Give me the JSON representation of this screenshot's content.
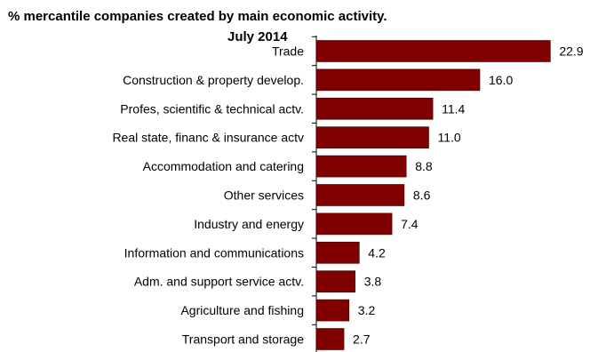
{
  "chart_data": {
    "type": "bar",
    "orientation": "horizontal",
    "title": "% mercantile companies created  by main economic activity.",
    "subtitle": "July 2014",
    "categories": [
      "Trade",
      "Construction & property develop.",
      "Profes, scientific & technical actv.",
      "Real state, financ & insurance actv",
      "Accommodation and catering",
      "Other services",
      "Industry and energy",
      "Information and communications",
      "Adm. and support service actv.",
      "Agriculture and fishing",
      "Transport and storage"
    ],
    "values": [
      22.9,
      16.0,
      11.4,
      11.0,
      8.8,
      8.6,
      7.4,
      4.2,
      3.8,
      3.2,
      2.7
    ],
    "value_labels": [
      "22.9",
      "16.0",
      "11.4",
      "11.0",
      "8.8",
      "8.6",
      "7.4",
      "4.2",
      "3.8",
      "3.2",
      "2.7"
    ],
    "xlim": [
      0,
      25
    ],
    "grid": false,
    "legend": "none",
    "bar_color": "#800000",
    "bar_edge_color": "#3a0000"
  }
}
